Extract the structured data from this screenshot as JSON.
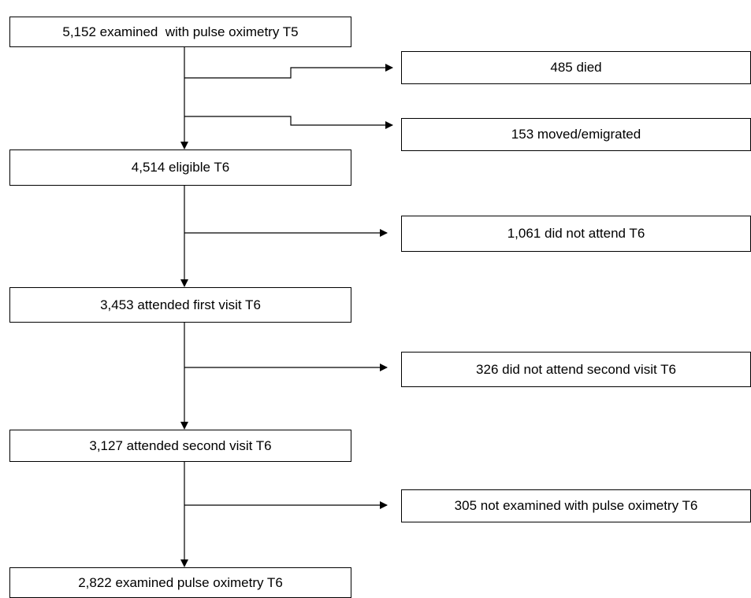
{
  "flowchart": {
    "main": [
      {
        "id": "t5",
        "label": "5,152 examined  with pulse oximetry T5"
      },
      {
        "id": "t6-eligible",
        "label": "4,514 eligible T6"
      },
      {
        "id": "t6-first",
        "label": "3,453 attended first visit T6"
      },
      {
        "id": "t6-second",
        "label": "3,127 attended second visit T6"
      },
      {
        "id": "t6-oximetry",
        "label": "2,822 examined pulse oximetry T6"
      }
    ],
    "exclusions": [
      {
        "id": "died",
        "label": "485 died"
      },
      {
        "id": "moved",
        "label": "153 moved/emigrated"
      },
      {
        "id": "no-attend",
        "label": "1,061 did not attend T6"
      },
      {
        "id": "no-second",
        "label": "326 did not attend second visit T6"
      },
      {
        "id": "no-oximetry",
        "label": "305 not examined with pulse oximetry T6"
      }
    ]
  }
}
